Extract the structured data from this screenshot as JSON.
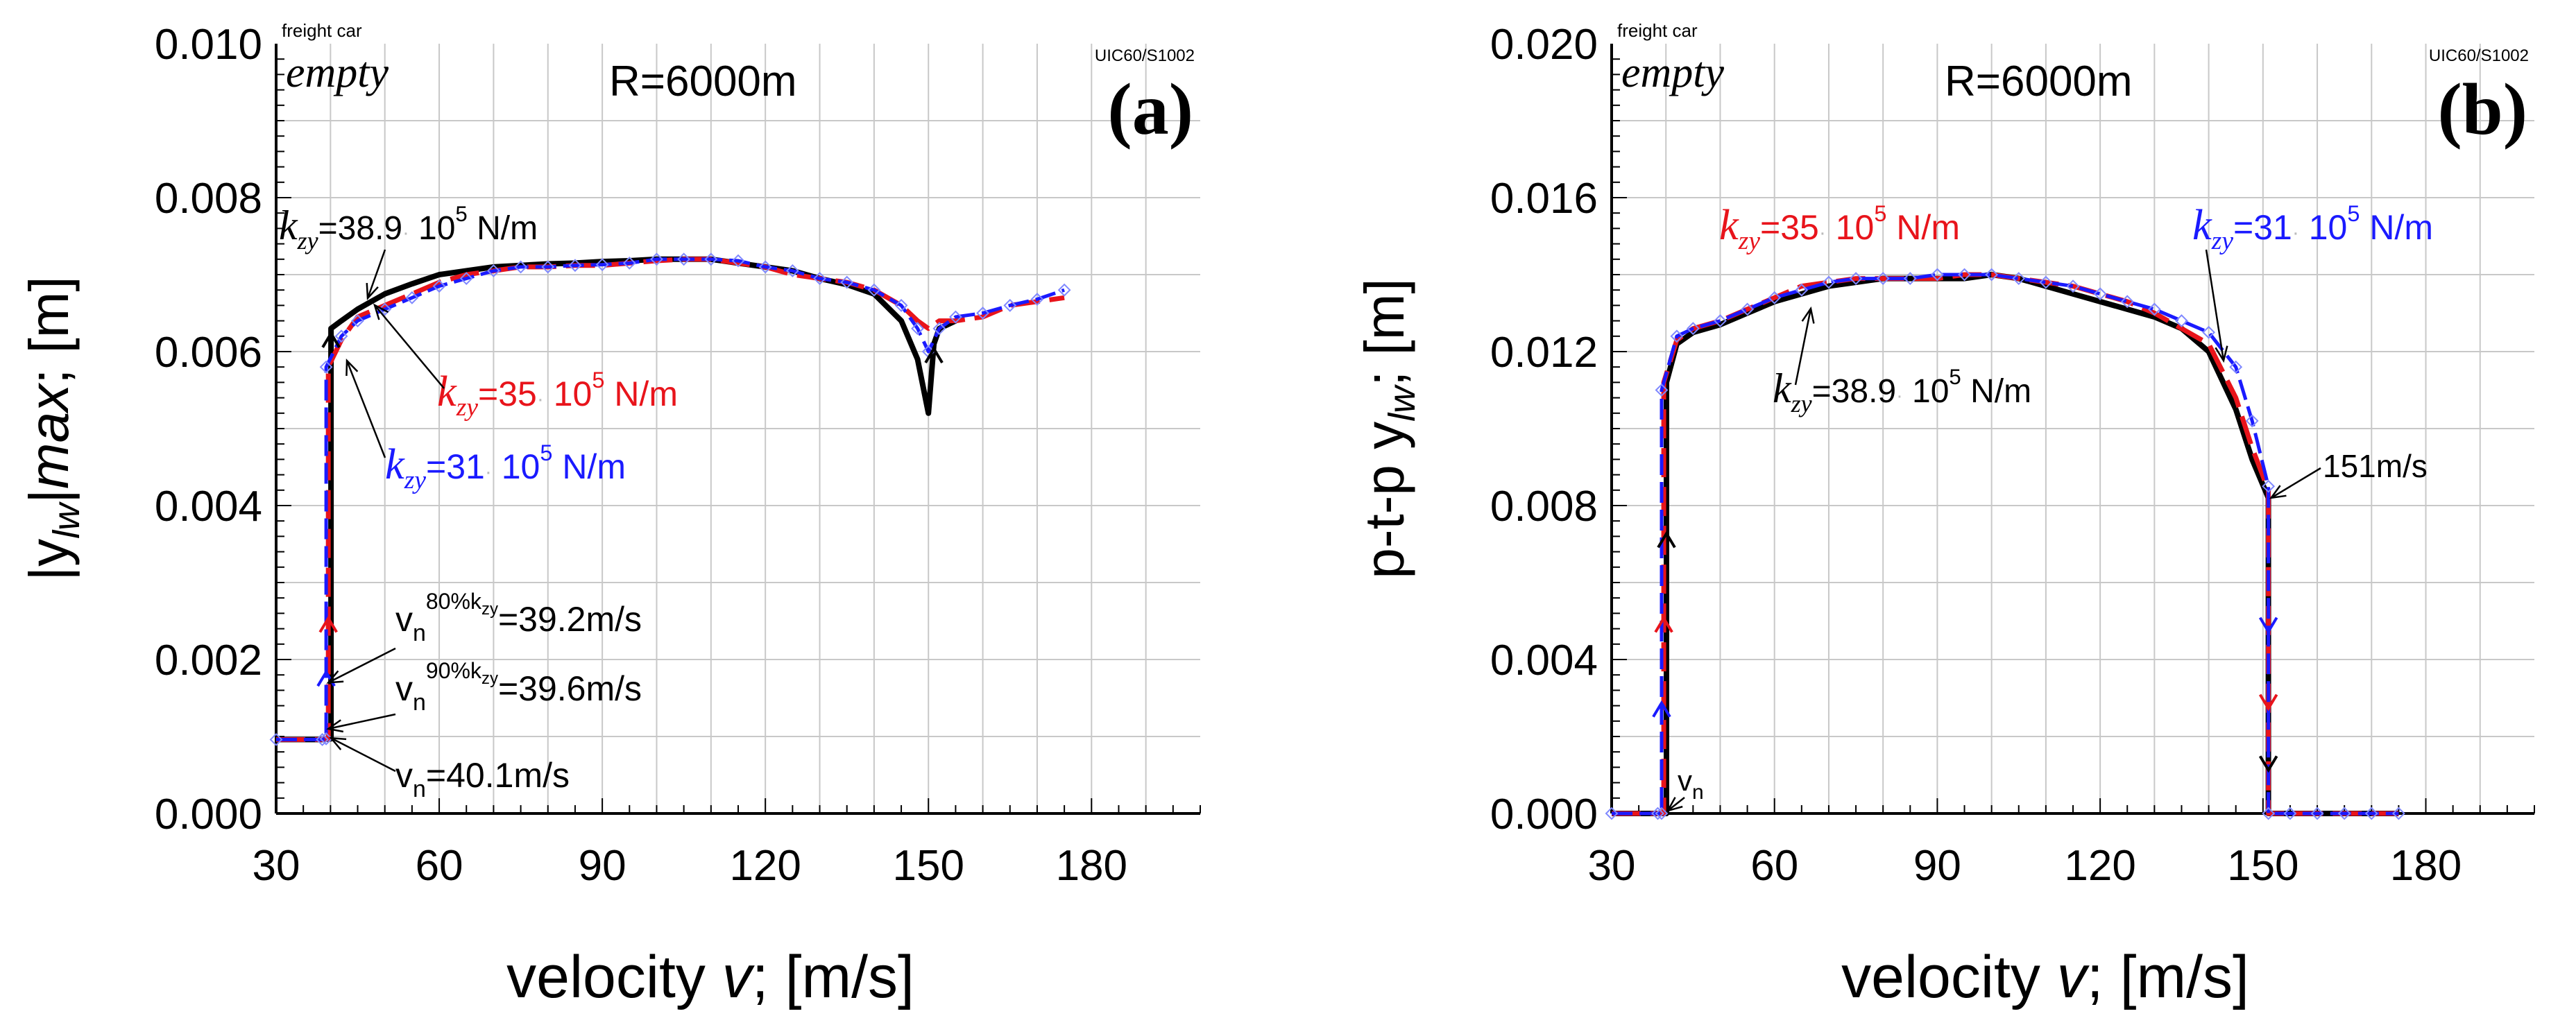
{
  "chart_data": [
    {
      "type": "line",
      "panel": "(a)",
      "xlabel_prefix": "velocity ",
      "xlabel_var": "v",
      "xlabel_suffix": "; [m/s]",
      "ylabel_pre": "|y",
      "ylabel_sub": "lw",
      "ylabel_mid": "|",
      "ylabel_var": "max",
      "ylabel_suffix": "; [m]",
      "xlim": [
        30,
        200
      ],
      "ylim": [
        0,
        0.01
      ],
      "xticks": [
        30,
        60,
        90,
        120,
        150,
        180
      ],
      "xtick_labels": [
        "30",
        "60",
        "90",
        "120",
        "150",
        "180"
      ],
      "yticks": [
        0,
        0.002,
        0.004,
        0.006,
        0.008,
        0.01
      ],
      "ytick_labels": [
        "0.000",
        "0.002",
        "0.004",
        "0.006",
        "0.008",
        "0.010"
      ],
      "corner_text": "freight car",
      "state_text": "empty",
      "radius_text": "R=6000m",
      "profile_text": "UIC60/S1002",
      "series": [
        {
          "name": "k_zy=38.9·10^5 N/m",
          "color": "#000000",
          "x": [
            30,
            38.5,
            40.1,
            40.1,
            42,
            45,
            50,
            55,
            60,
            65,
            70,
            75,
            80,
            85,
            90,
            95,
            100,
            105,
            110,
            115,
            120,
            125,
            130,
            135,
            140,
            145,
            148,
            150,
            151,
            152,
            155
          ],
          "y": [
            0.00096,
            0.00096,
            0.00097,
            0.0063,
            0.0064,
            0.00655,
            0.00675,
            0.00688,
            0.007,
            0.00705,
            0.0071,
            0.00712,
            0.00714,
            0.00715,
            0.00717,
            0.00718,
            0.0072,
            0.0072,
            0.0072,
            0.00715,
            0.0071,
            0.00705,
            0.00695,
            0.00687,
            0.00675,
            0.0064,
            0.0059,
            0.0052,
            0.0061,
            0.0063,
            0.0064
          ]
        },
        {
          "name": "k_zy=35·10^5 N/m",
          "color": "#e8141b",
          "x": [
            30,
            38.5,
            39.6,
            39.6,
            42,
            45,
            50,
            55,
            60,
            65,
            70,
            75,
            80,
            85,
            90,
            95,
            100,
            105,
            110,
            115,
            120,
            125,
            130,
            135,
            140,
            145,
            148,
            150,
            152,
            155,
            160,
            165,
            170,
            175
          ],
          "y": [
            0.00096,
            0.00096,
            0.00097,
            0.0058,
            0.00615,
            0.00645,
            0.0066,
            0.00675,
            0.0069,
            0.007,
            0.00705,
            0.0071,
            0.0071,
            0.00712,
            0.00712,
            0.00715,
            0.00718,
            0.0072,
            0.0072,
            0.00715,
            0.0071,
            0.007,
            0.00695,
            0.0069,
            0.0068,
            0.0066,
            0.0064,
            0.0063,
            0.0064,
            0.0064,
            0.00645,
            0.0066,
            0.00665,
            0.0067
          ]
        },
        {
          "name": "k_zy=31·10^5 N/m",
          "color": "#1a1aff",
          "x": [
            30,
            38.5,
            39.2,
            39.2,
            42,
            45,
            50,
            55,
            60,
            65,
            70,
            75,
            80,
            85,
            90,
            95,
            100,
            105,
            110,
            115,
            120,
            125,
            130,
            135,
            140,
            145,
            148,
            150,
            152,
            155,
            160,
            165,
            170,
            175
          ],
          "y": [
            0.00096,
            0.00096,
            0.00097,
            0.0058,
            0.0062,
            0.0064,
            0.00655,
            0.0067,
            0.00685,
            0.00695,
            0.00705,
            0.0071,
            0.0071,
            0.00712,
            0.00713,
            0.00715,
            0.0072,
            0.0072,
            0.0072,
            0.00718,
            0.0071,
            0.00705,
            0.00695,
            0.0069,
            0.0068,
            0.0066,
            0.0063,
            0.006,
            0.0063,
            0.00645,
            0.0065,
            0.0066,
            0.00668,
            0.0068
          ]
        }
      ],
      "annotations": [
        {
          "pre": "k",
          "sub": "zy",
          "post": "=38.9",
          "unit": "10",
          "exp": "5",
          "tail": " N/m",
          "color": "#000000"
        },
        {
          "pre": "k",
          "sub": "zy",
          "post": "=35",
          "unit": "10",
          "exp": "5",
          "tail": " N/m",
          "color": "#e8141b"
        },
        {
          "pre": "k",
          "sub": "zy",
          "post": "=31",
          "unit": "10",
          "exp": "5",
          "tail": " N/m",
          "color": "#1a1aff"
        },
        {
          "v": "v",
          "sub": "n",
          "sup": "80%k",
          "supsub": "zy",
          "tail": "=39.2m/s"
        },
        {
          "v": "v",
          "sub": "n",
          "sup": "90%k",
          "supsub": "zy",
          "tail": "=39.6m/s"
        },
        {
          "v": "v",
          "sub": "n",
          "sup": "",
          "supsub": "",
          "tail": "=40.1m/s"
        }
      ]
    },
    {
      "type": "line",
      "panel": "(b)",
      "xlabel_prefix": "velocity ",
      "xlabel_var": "v",
      "xlabel_suffix": "; [m/s]",
      "ylabel_pre": "p-t-p y",
      "ylabel_sub": "lw",
      "ylabel_suffix": "; [m]",
      "xlim": [
        30,
        200
      ],
      "ylim": [
        0,
        0.02
      ],
      "xticks": [
        30,
        60,
        90,
        120,
        150,
        180
      ],
      "xtick_labels": [
        "30",
        "60",
        "90",
        "120",
        "150",
        "180"
      ],
      "yticks": [
        0,
        0.004,
        0.008,
        0.012,
        0.016,
        0.02
      ],
      "ytick_labels": [
        "0.000",
        "0.004",
        "0.008",
        "0.012",
        "0.016",
        "0.020"
      ],
      "corner_text": "freight car",
      "state_text": "empty",
      "radius_text": "R=6000m",
      "profile_text": "UIC60/S1002",
      "series": [
        {
          "name": "k_zy=38.9·10^5 N/m",
          "color": "#000000",
          "x": [
            30,
            38.5,
            40.1,
            40.1,
            42,
            45,
            50,
            55,
            60,
            65,
            70,
            75,
            80,
            85,
            90,
            95,
            100,
            105,
            110,
            115,
            120,
            125,
            130,
            135,
            140,
            145,
            148,
            151,
            151,
            155,
            160,
            165,
            170,
            175
          ],
          "y": [
            0,
            0,
            0,
            0.0112,
            0.0122,
            0.0125,
            0.0127,
            0.013,
            0.0133,
            0.0135,
            0.0137,
            0.0138,
            0.0139,
            0.0139,
            0.0139,
            0.0139,
            0.014,
            0.0139,
            0.0137,
            0.0135,
            0.0133,
            0.0131,
            0.0129,
            0.0126,
            0.012,
            0.0105,
            0.0092,
            0.0082,
            0,
            0,
            0,
            0,
            0,
            0
          ]
        },
        {
          "name": "k_zy=35·10^5 N/m",
          "color": "#e8141b",
          "x": [
            30,
            38.5,
            39.6,
            39.6,
            42,
            45,
            50,
            55,
            60,
            65,
            70,
            75,
            80,
            85,
            90,
            95,
            100,
            105,
            110,
            115,
            120,
            125,
            130,
            135,
            140,
            145,
            148,
            151,
            151,
            155,
            160,
            165,
            170,
            175
          ],
          "y": [
            0,
            0,
            0,
            0.0112,
            0.0123,
            0.0126,
            0.0128,
            0.0131,
            0.0134,
            0.0137,
            0.0138,
            0.0139,
            0.0139,
            0.0139,
            0.0139,
            0.014,
            0.014,
            0.0139,
            0.0138,
            0.0137,
            0.0135,
            0.0133,
            0.013,
            0.0126,
            0.0122,
            0.0108,
            0.0095,
            0.0084,
            0,
            0,
            0,
            0,
            0,
            0
          ]
        },
        {
          "name": "k_zy=31·10^5 N/m",
          "color": "#1a1aff",
          "x": [
            30,
            38.5,
            39.2,
            39.2,
            42,
            45,
            50,
            55,
            60,
            65,
            70,
            75,
            80,
            85,
            90,
            95,
            100,
            105,
            110,
            115,
            120,
            125,
            130,
            135,
            140,
            145,
            148,
            151,
            151,
            155,
            160,
            165,
            170,
            175
          ],
          "y": [
            0,
            0,
            0,
            0.011,
            0.0124,
            0.0126,
            0.0128,
            0.0131,
            0.0134,
            0.0136,
            0.0138,
            0.0139,
            0.0139,
            0.0139,
            0.014,
            0.014,
            0.014,
            0.0139,
            0.0138,
            0.0137,
            0.0135,
            0.0133,
            0.0131,
            0.0128,
            0.0125,
            0.0116,
            0.0102,
            0.0085,
            0,
            0,
            0,
            0,
            0,
            0
          ]
        }
      ],
      "annotations": [
        {
          "pre": "k",
          "sub": "zy",
          "post": "=35",
          "unit": "10",
          "exp": "5",
          "tail": " N/m",
          "color": "#e8141b"
        },
        {
          "pre": "k",
          "sub": "zy",
          "post": "=31",
          "unit": "10",
          "exp": "5",
          "tail": " N/m",
          "color": "#1a1aff"
        },
        {
          "pre": "k",
          "sub": "zy",
          "post": "=38.9",
          "unit": "10",
          "exp": "5",
          "tail": " N/m",
          "color": "#000000"
        },
        {
          "text": "151m/s"
        },
        {
          "v": "v",
          "sub": "n"
        }
      ]
    }
  ]
}
